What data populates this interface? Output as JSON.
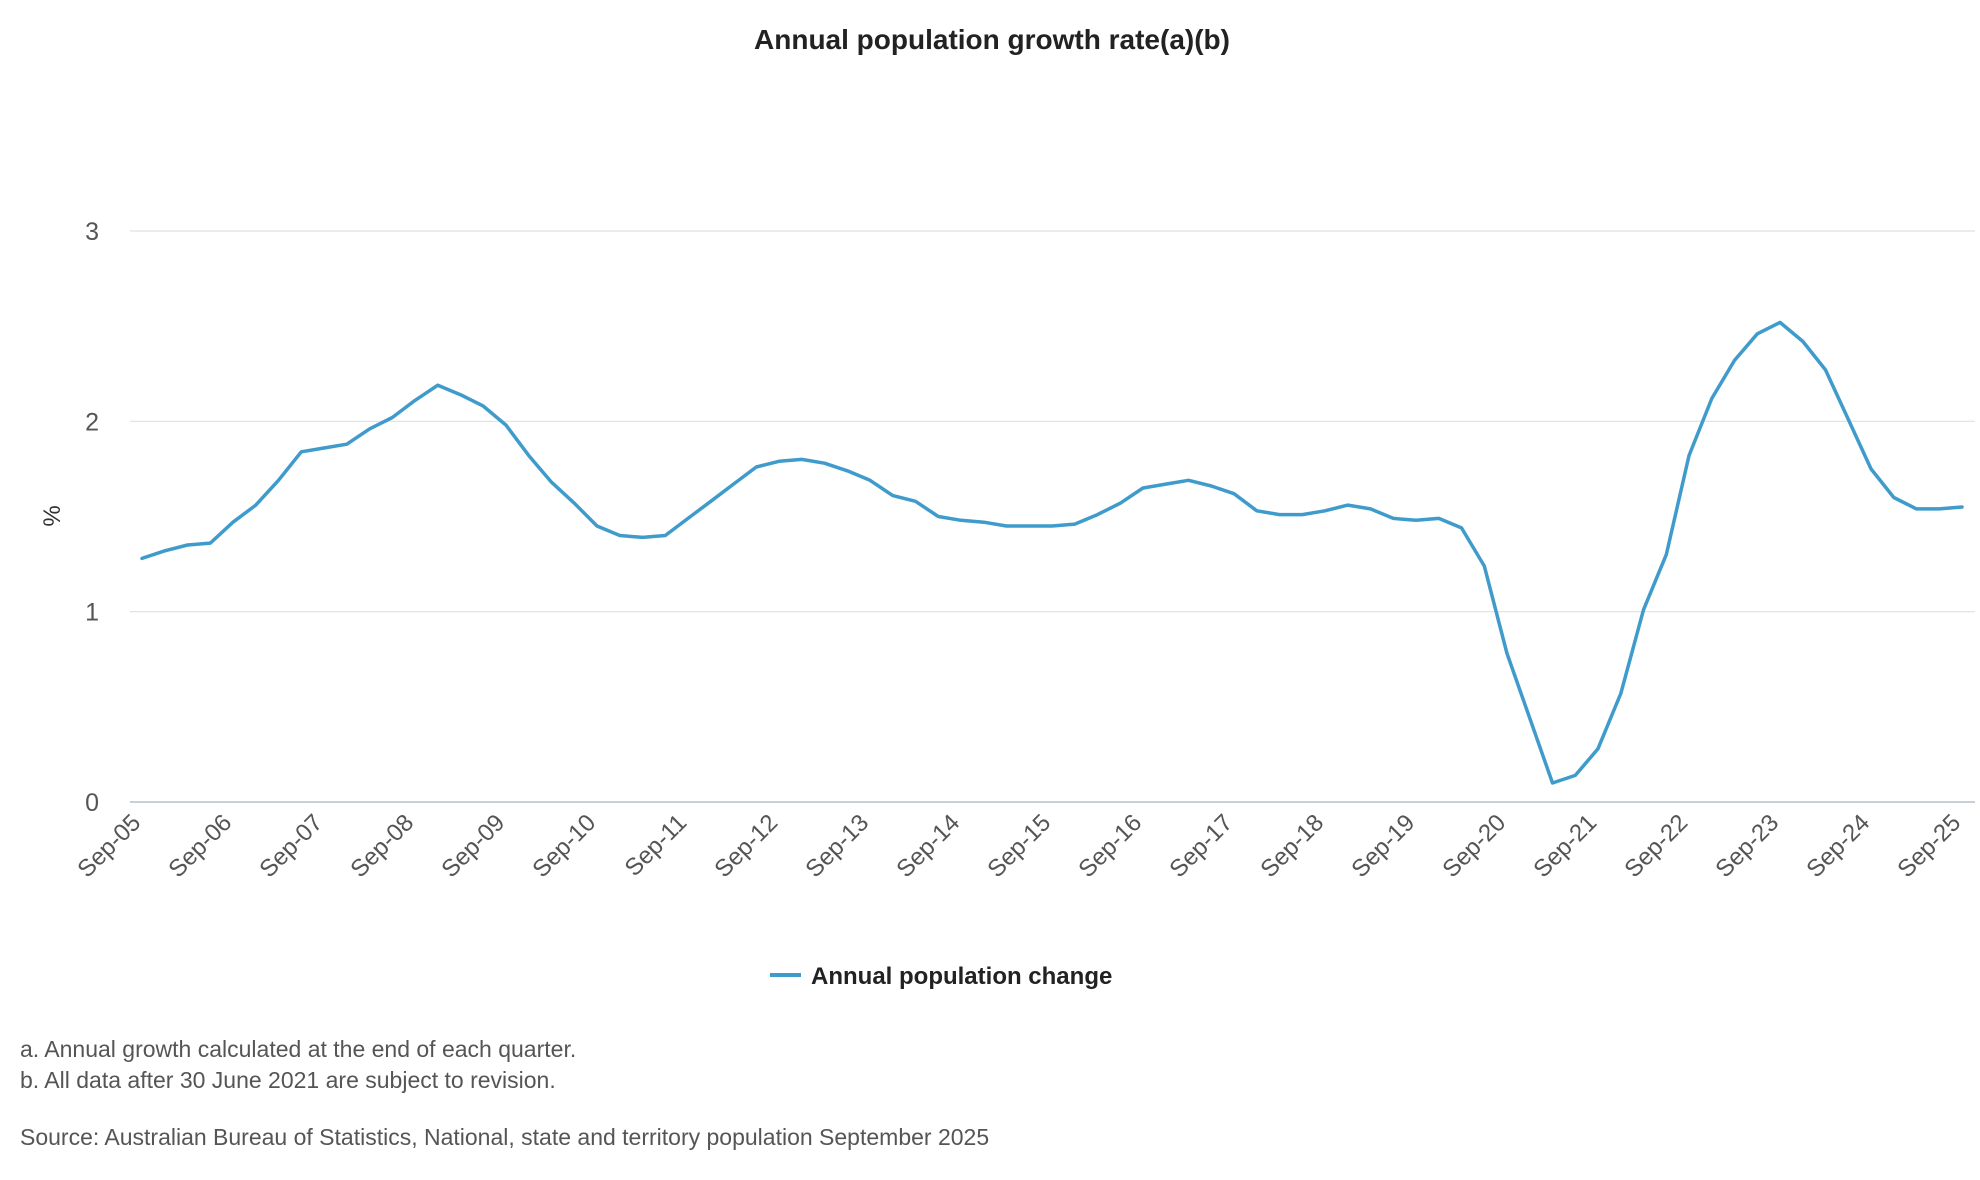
{
  "chart_data": {
    "type": "line",
    "title": "Annual population growth rate(a)(b)",
    "ylabel": "%",
    "xlabel": "",
    "ylim": [
      0,
      3
    ],
    "yticks": [
      "0",
      "1",
      "2",
      "3"
    ],
    "grid": true,
    "legend_position": "bottom-center",
    "x_tick_labels": [
      "Sep-05",
      "Sep-06",
      "Sep-07",
      "Sep-08",
      "Sep-09",
      "Sep-10",
      "Sep-11",
      "Sep-12",
      "Sep-13",
      "Sep-14",
      "Sep-15",
      "Sep-16",
      "Sep-17",
      "Sep-18",
      "Sep-19",
      "Sep-20",
      "Sep-21",
      "Sep-22",
      "Sep-23",
      "Sep-24",
      "Sep-25"
    ],
    "x": [
      "Sep-05",
      "Dec-05",
      "Mar-06",
      "Jun-06",
      "Sep-06",
      "Dec-06",
      "Mar-07",
      "Jun-07",
      "Sep-07",
      "Dec-07",
      "Mar-08",
      "Jun-08",
      "Sep-08",
      "Dec-08",
      "Mar-09",
      "Jun-09",
      "Sep-09",
      "Dec-09",
      "Mar-10",
      "Jun-10",
      "Sep-10",
      "Dec-10",
      "Mar-11",
      "Jun-11",
      "Sep-11",
      "Dec-11",
      "Mar-12",
      "Jun-12",
      "Sep-12",
      "Dec-12",
      "Mar-13",
      "Jun-13",
      "Sep-13",
      "Dec-13",
      "Mar-14",
      "Jun-14",
      "Sep-14",
      "Dec-14",
      "Mar-15",
      "Jun-15",
      "Sep-15",
      "Dec-15",
      "Mar-16",
      "Jun-16",
      "Sep-16",
      "Dec-16",
      "Mar-17",
      "Jun-17",
      "Sep-17",
      "Dec-17",
      "Mar-18",
      "Jun-18",
      "Sep-18",
      "Dec-18",
      "Mar-19",
      "Jun-19",
      "Sep-19",
      "Dec-19",
      "Mar-20",
      "Jun-20",
      "Sep-20",
      "Dec-20",
      "Mar-21",
      "Jun-21",
      "Sep-21",
      "Dec-21",
      "Mar-22",
      "Jun-22",
      "Sep-22",
      "Dec-22",
      "Mar-23",
      "Jun-23",
      "Sep-23",
      "Dec-23",
      "Mar-24",
      "Jun-24",
      "Sep-24",
      "Dec-24",
      "Mar-25",
      "Jun-25",
      "Sep-25"
    ],
    "series": [
      {
        "name": "Annual population change",
        "color": "#3f9bcb",
        "values": [
          1.28,
          1.32,
          1.35,
          1.36,
          1.47,
          1.56,
          1.69,
          1.84,
          1.86,
          1.88,
          1.96,
          2.02,
          2.11,
          2.19,
          2.14,
          2.08,
          1.98,
          1.82,
          1.68,
          1.57,
          1.45,
          1.4,
          1.39,
          1.4,
          1.49,
          1.58,
          1.67,
          1.76,
          1.79,
          1.8,
          1.78,
          1.74,
          1.69,
          1.61,
          1.58,
          1.5,
          1.48,
          1.47,
          1.45,
          1.45,
          1.45,
          1.46,
          1.51,
          1.57,
          1.65,
          1.67,
          1.69,
          1.66,
          1.62,
          1.53,
          1.51,
          1.51,
          1.53,
          1.56,
          1.54,
          1.49,
          1.48,
          1.49,
          1.44,
          1.24,
          0.78,
          0.44,
          0.1,
          0.14,
          0.28,
          0.57,
          1.01,
          1.3,
          1.82,
          2.12,
          2.32,
          2.46,
          2.52,
          2.42,
          2.27,
          2.01,
          1.75,
          1.6,
          1.54,
          1.54,
          1.55
        ]
      }
    ]
  },
  "notes": [
    "a. Annual growth calculated at the end of each quarter.",
    "b. All data after 30 June 2021 are subject to revision."
  ],
  "source": "Source: Australian Bureau of Statistics, National, state and territory population September 2025",
  "colors": {
    "gridline": "#e0e0e0",
    "axis": "#c8cfd8",
    "series": "#3f9bcb"
  }
}
